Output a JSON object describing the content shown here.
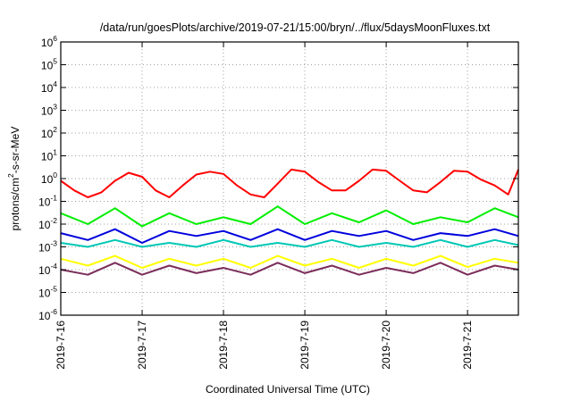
{
  "chart_data": {
    "type": "line",
    "title": "/data/run/goesPlots/archive/2019-07-21/15:00/bryn/../flux/5daysMoonFluxes.txt",
    "xlabel": "Coordinated Universal Time (UTC)",
    "ylabel": "protons/cm²-s-sr-MeV",
    "ylabel_parts": {
      "pre": "protons/cm",
      "sup": "2",
      "post": "-s-sr-MeV"
    },
    "y_scale": "log",
    "ylim": [
      1e-06,
      1000000.0
    ],
    "y_ticks": [
      {
        "base": "10",
        "exp": "-6"
      },
      {
        "base": "10",
        "exp": "-5"
      },
      {
        "base": "10",
        "exp": "-4"
      },
      {
        "base": "10",
        "exp": "-3"
      },
      {
        "base": "10",
        "exp": "-2"
      },
      {
        "base": "10",
        "exp": "-1"
      },
      {
        "base": "10",
        "exp": "0"
      },
      {
        "base": "10",
        "exp": "1"
      },
      {
        "base": "10",
        "exp": "2"
      },
      {
        "base": "10",
        "exp": "3"
      },
      {
        "base": "10",
        "exp": "4"
      },
      {
        "base": "10",
        "exp": "5"
      },
      {
        "base": "10",
        "exp": "6"
      }
    ],
    "x_ticks": [
      "2019-7-16",
      "2019-7-17",
      "2019-7-18",
      "2019-7-19",
      "2019-7-20",
      "2019-7-21"
    ],
    "xlim": [
      "2019-07-16 00:00",
      "2019-07-21 15:00"
    ],
    "grid": true,
    "series": [
      {
        "color": "#ff0000",
        "x": [
          "2019-07-16 00:00",
          "2019-07-16 04:00",
          "2019-07-16 08:00",
          "2019-07-16 12:00",
          "2019-07-16 16:00",
          "2019-07-16 20:00",
          "2019-07-17 00:00",
          "2019-07-17 04:00",
          "2019-07-17 08:00",
          "2019-07-17 12:00",
          "2019-07-17 16:00",
          "2019-07-17 20:00",
          "2019-07-18 00:00",
          "2019-07-18 04:00",
          "2019-07-18 08:00",
          "2019-07-18 12:00",
          "2019-07-18 16:00",
          "2019-07-18 20:00",
          "2019-07-19 00:00",
          "2019-07-19 04:00",
          "2019-07-19 08:00",
          "2019-07-19 12:00",
          "2019-07-19 16:00",
          "2019-07-19 20:00",
          "2019-07-20 00:00",
          "2019-07-20 04:00",
          "2019-07-20 08:00",
          "2019-07-20 12:00",
          "2019-07-20 16:00",
          "2019-07-20 20:00",
          "2019-07-21 00:00",
          "2019-07-21 04:00",
          "2019-07-21 08:00",
          "2019-07-21 12:00",
          "2019-07-21 15:00"
        ],
        "values": [
          0.8,
          0.3,
          0.15,
          0.25,
          0.8,
          1.8,
          1.2,
          0.3,
          0.15,
          0.5,
          1.5,
          2.0,
          1.6,
          0.5,
          0.2,
          0.15,
          0.6,
          2.5,
          2.0,
          0.7,
          0.3,
          0.3,
          0.8,
          2.5,
          2.2,
          0.8,
          0.3,
          0.25,
          0.7,
          2.2,
          2.0,
          0.9,
          0.5,
          0.2,
          2.5
        ]
      },
      {
        "color": "#00ee00",
        "x": [
          "2019-07-16 00:00",
          "2019-07-16 08:00",
          "2019-07-16 16:00",
          "2019-07-17 00:00",
          "2019-07-17 08:00",
          "2019-07-17 16:00",
          "2019-07-18 00:00",
          "2019-07-18 08:00",
          "2019-07-18 16:00",
          "2019-07-19 00:00",
          "2019-07-19 08:00",
          "2019-07-19 16:00",
          "2019-07-20 00:00",
          "2019-07-20 08:00",
          "2019-07-20 16:00",
          "2019-07-21 00:00",
          "2019-07-21 08:00",
          "2019-07-21 15:00"
        ],
        "values": [
          0.03,
          0.01,
          0.05,
          0.008,
          0.03,
          0.01,
          0.02,
          0.01,
          0.06,
          0.01,
          0.03,
          0.012,
          0.04,
          0.01,
          0.02,
          0.012,
          0.05,
          0.02
        ]
      },
      {
        "color": "#0000dd",
        "x": [
          "2019-07-16 00:00",
          "2019-07-16 08:00",
          "2019-07-16 16:00",
          "2019-07-17 00:00",
          "2019-07-17 08:00",
          "2019-07-17 16:00",
          "2019-07-18 00:00",
          "2019-07-18 08:00",
          "2019-07-18 16:00",
          "2019-07-19 00:00",
          "2019-07-19 08:00",
          "2019-07-19 16:00",
          "2019-07-20 00:00",
          "2019-07-20 08:00",
          "2019-07-20 16:00",
          "2019-07-21 00:00",
          "2019-07-21 08:00",
          "2019-07-21 15:00"
        ],
        "values": [
          0.004,
          0.002,
          0.006,
          0.0015,
          0.005,
          0.003,
          0.005,
          0.002,
          0.006,
          0.002,
          0.005,
          0.003,
          0.005,
          0.002,
          0.004,
          0.003,
          0.006,
          0.003
        ]
      },
      {
        "color": "#00c8b4",
        "x": [
          "2019-07-16 00:00",
          "2019-07-16 08:00",
          "2019-07-16 16:00",
          "2019-07-17 00:00",
          "2019-07-17 08:00",
          "2019-07-17 16:00",
          "2019-07-18 00:00",
          "2019-07-18 08:00",
          "2019-07-18 16:00",
          "2019-07-19 00:00",
          "2019-07-19 08:00",
          "2019-07-19 16:00",
          "2019-07-20 00:00",
          "2019-07-20 08:00",
          "2019-07-20 16:00",
          "2019-07-21 00:00",
          "2019-07-21 08:00",
          "2019-07-21 15:00"
        ],
        "values": [
          0.0015,
          0.001,
          0.002,
          0.001,
          0.0015,
          0.001,
          0.002,
          0.001,
          0.0015,
          0.001,
          0.002,
          0.001,
          0.0015,
          0.001,
          0.002,
          0.001,
          0.002,
          0.0012
        ]
      },
      {
        "color": "#ffff00",
        "x": [
          "2019-07-16 00:00",
          "2019-07-16 08:00",
          "2019-07-16 16:00",
          "2019-07-17 00:00",
          "2019-07-17 08:00",
          "2019-07-17 16:00",
          "2019-07-18 00:00",
          "2019-07-18 08:00",
          "2019-07-18 16:00",
          "2019-07-19 00:00",
          "2019-07-19 08:00",
          "2019-07-19 16:00",
          "2019-07-20 00:00",
          "2019-07-20 08:00",
          "2019-07-20 16:00",
          "2019-07-21 00:00",
          "2019-07-21 08:00",
          "2019-07-21 15:00"
        ],
        "values": [
          0.0003,
          0.00015,
          0.0004,
          0.00012,
          0.0003,
          0.00015,
          0.0003,
          0.00012,
          0.0004,
          0.00015,
          0.0003,
          0.00012,
          0.0003,
          0.00015,
          0.0004,
          0.00013,
          0.0003,
          0.0002
        ]
      },
      {
        "color": "#7b2d5a",
        "x": [
          "2019-07-16 00:00",
          "2019-07-16 08:00",
          "2019-07-16 16:00",
          "2019-07-17 00:00",
          "2019-07-17 08:00",
          "2019-07-17 16:00",
          "2019-07-18 00:00",
          "2019-07-18 08:00",
          "2019-07-18 16:00",
          "2019-07-19 00:00",
          "2019-07-19 08:00",
          "2019-07-19 16:00",
          "2019-07-20 00:00",
          "2019-07-20 08:00",
          "2019-07-20 16:00",
          "2019-07-21 00:00",
          "2019-07-21 08:00",
          "2019-07-21 15:00"
        ],
        "values": [
          0.0001,
          6e-05,
          0.0002,
          6e-05,
          0.00015,
          7e-05,
          0.00012,
          6e-05,
          0.0002,
          7e-05,
          0.00015,
          6e-05,
          0.00012,
          7e-05,
          0.0002,
          6e-05,
          0.00015,
          0.0001
        ]
      }
    ]
  }
}
